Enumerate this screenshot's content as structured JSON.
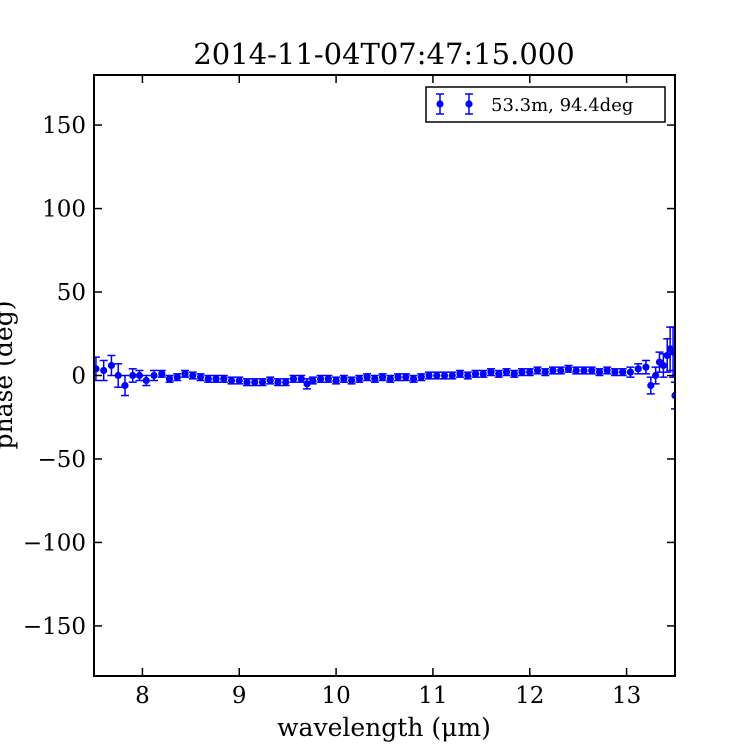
{
  "chart_data": {
    "type": "scatter",
    "title": "2014-11-04T07:47:15.000",
    "xlabel": "wavelength (μm)",
    "ylabel": "phase (deg)",
    "xlim": [
      7.5,
      13.5
    ],
    "ylim": [
      -180,
      180
    ],
    "xticks": [
      8,
      9,
      10,
      11,
      12,
      13
    ],
    "xtick_labels": [
      "8",
      "9",
      "10",
      "11",
      "12",
      "13"
    ],
    "yticks": [
      150,
      100,
      50,
      0,
      -50,
      -100,
      -150
    ],
    "ytick_labels": [
      "150",
      "100",
      "50",
      "0",
      "−50",
      "−100",
      "−150"
    ],
    "grid": false,
    "legend_position": "upper right",
    "series_color": "#0000ff",
    "series": [
      {
        "name": "53.3m, 94.4deg",
        "marker": "circle",
        "errorbars": true,
        "points": [
          {
            "x": 7.52,
            "y": 4,
            "err": 7
          },
          {
            "x": 7.6,
            "y": 3,
            "err": 6
          },
          {
            "x": 7.68,
            "y": 6,
            "err": 6
          },
          {
            "x": 7.75,
            "y": 0,
            "err": 7
          },
          {
            "x": 7.82,
            "y": -6,
            "err": 6
          },
          {
            "x": 7.9,
            "y": 0,
            "err": 4
          },
          {
            "x": 7.97,
            "y": 0,
            "err": 3
          },
          {
            "x": 8.04,
            "y": -3,
            "err": 3
          },
          {
            "x": 8.12,
            "y": 0,
            "err": 3
          },
          {
            "x": 8.2,
            "y": 1,
            "err": 2
          },
          {
            "x": 8.28,
            "y": -2,
            "err": 2
          },
          {
            "x": 8.36,
            "y": -1,
            "err": 2
          },
          {
            "x": 8.44,
            "y": 1,
            "err": 2
          },
          {
            "x": 8.52,
            "y": 0,
            "err": 2
          },
          {
            "x": 8.6,
            "y": -1,
            "err": 2
          },
          {
            "x": 8.68,
            "y": -2,
            "err": 2
          },
          {
            "x": 8.76,
            "y": -2,
            "err": 2
          },
          {
            "x": 8.84,
            "y": -2,
            "err": 2
          },
          {
            "x": 8.92,
            "y": -3,
            "err": 2
          },
          {
            "x": 9.0,
            "y": -3,
            "err": 2
          },
          {
            "x": 9.08,
            "y": -4,
            "err": 2
          },
          {
            "x": 9.16,
            "y": -4,
            "err": 2
          },
          {
            "x": 9.24,
            "y": -4,
            "err": 2
          },
          {
            "x": 9.32,
            "y": -3,
            "err": 2
          },
          {
            "x": 9.4,
            "y": -4,
            "err": 2
          },
          {
            "x": 9.48,
            "y": -4,
            "err": 2
          },
          {
            "x": 9.56,
            "y": -2,
            "err": 2
          },
          {
            "x": 9.64,
            "y": -2,
            "err": 2
          },
          {
            "x": 9.7,
            "y": -5,
            "err": 3
          },
          {
            "x": 9.76,
            "y": -3,
            "err": 2
          },
          {
            "x": 9.84,
            "y": -2,
            "err": 2
          },
          {
            "x": 9.92,
            "y": -2,
            "err": 2
          },
          {
            "x": 10.0,
            "y": -3,
            "err": 2
          },
          {
            "x": 10.08,
            "y": -2,
            "err": 2
          },
          {
            "x": 10.16,
            "y": -3,
            "err": 2
          },
          {
            "x": 10.24,
            "y": -2,
            "err": 2
          },
          {
            "x": 10.32,
            "y": -1,
            "err": 2
          },
          {
            "x": 10.4,
            "y": -2,
            "err": 2
          },
          {
            "x": 10.48,
            "y": -1,
            "err": 2
          },
          {
            "x": 10.56,
            "y": -2,
            "err": 2
          },
          {
            "x": 10.64,
            "y": -1,
            "err": 2
          },
          {
            "x": 10.72,
            "y": -1,
            "err": 2
          },
          {
            "x": 10.8,
            "y": -2,
            "err": 2
          },
          {
            "x": 10.88,
            "y": -1,
            "err": 2
          },
          {
            "x": 10.96,
            "y": 0,
            "err": 2
          },
          {
            "x": 11.04,
            "y": 0,
            "err": 2
          },
          {
            "x": 11.12,
            "y": 0,
            "err": 2
          },
          {
            "x": 11.2,
            "y": 0,
            "err": 2
          },
          {
            "x": 11.28,
            "y": 1,
            "err": 2
          },
          {
            "x": 11.36,
            "y": 0,
            "err": 2
          },
          {
            "x": 11.44,
            "y": 1,
            "err": 2
          },
          {
            "x": 11.52,
            "y": 1,
            "err": 2
          },
          {
            "x": 11.6,
            "y": 2,
            "err": 2
          },
          {
            "x": 11.68,
            "y": 1,
            "err": 2
          },
          {
            "x": 11.76,
            "y": 2,
            "err": 2
          },
          {
            "x": 11.84,
            "y": 1,
            "err": 2
          },
          {
            "x": 11.92,
            "y": 2,
            "err": 2
          },
          {
            "x": 12.0,
            "y": 2,
            "err": 2
          },
          {
            "x": 12.08,
            "y": 3,
            "err": 2
          },
          {
            "x": 12.16,
            "y": 2,
            "err": 2
          },
          {
            "x": 12.24,
            "y": 3,
            "err": 2
          },
          {
            "x": 12.32,
            "y": 3,
            "err": 2
          },
          {
            "x": 12.4,
            "y": 4,
            "err": 2
          },
          {
            "x": 12.48,
            "y": 3,
            "err": 2
          },
          {
            "x": 12.56,
            "y": 3,
            "err": 2
          },
          {
            "x": 12.64,
            "y": 3,
            "err": 2
          },
          {
            "x": 12.72,
            "y": 2,
            "err": 2
          },
          {
            "x": 12.8,
            "y": 3,
            "err": 2
          },
          {
            "x": 12.88,
            "y": 2,
            "err": 2
          },
          {
            "x": 12.96,
            "y": 2,
            "err": 2
          },
          {
            "x": 13.04,
            "y": 2,
            "err": 3
          },
          {
            "x": 13.12,
            "y": 4,
            "err": 3
          },
          {
            "x": 13.2,
            "y": 5,
            "err": 4
          },
          {
            "x": 13.25,
            "y": -6,
            "err": 5
          },
          {
            "x": 13.3,
            "y": 0,
            "err": 5
          },
          {
            "x": 13.34,
            "y": 8,
            "err": 6
          },
          {
            "x": 13.38,
            "y": 6,
            "err": 7
          },
          {
            "x": 13.42,
            "y": 12,
            "err": 10
          },
          {
            "x": 13.45,
            "y": 16,
            "err": 13
          },
          {
            "x": 13.48,
            "y": 14,
            "err": 15
          },
          {
            "x": 13.5,
            "y": -12,
            "err": 8
          }
        ]
      }
    ]
  }
}
